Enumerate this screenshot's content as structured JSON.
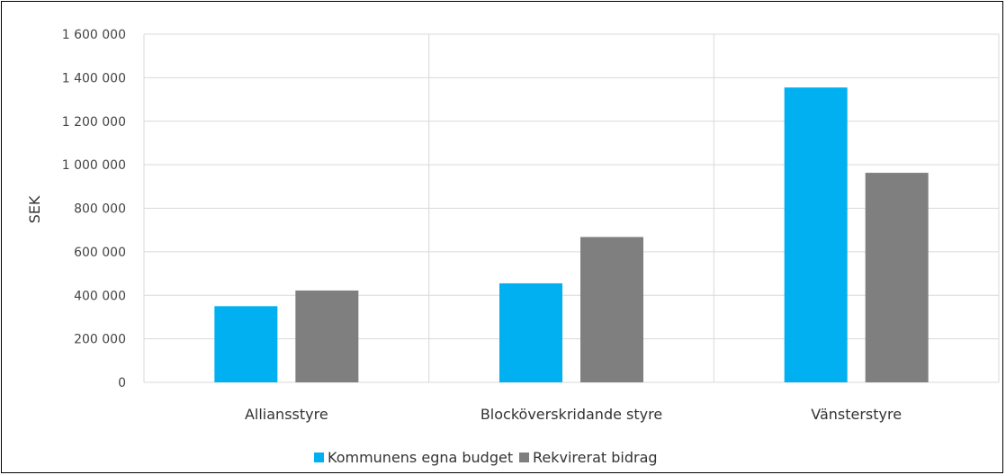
{
  "chart_data": {
    "type": "bar",
    "categories": [
      "Alliansstyre",
      "Blocköverskridande styre",
      "Vänsterstyre"
    ],
    "series": [
      {
        "name": "Kommunens egna budget",
        "color": "#00B0F0",
        "values": [
          350000,
          455000,
          1355000
        ]
      },
      {
        "name": "Rekvirerat bidrag",
        "color": "#7F7F7F",
        "values": [
          422000,
          668000,
          963000
        ]
      }
    ],
    "ylabel": "SEK",
    "xlabel": "",
    "ylim": [
      0,
      1600000
    ],
    "yticks": [
      0,
      200000,
      400000,
      600000,
      800000,
      1000000,
      1200000,
      1400000,
      1600000
    ],
    "ytick_labels": [
      "0",
      "200 000",
      "400 000",
      "600 000",
      "800 000",
      "1 000 000",
      "1 200 000",
      "1 400 000",
      "1 600 000"
    ],
    "grid": true,
    "legend_position": "bottom"
  }
}
